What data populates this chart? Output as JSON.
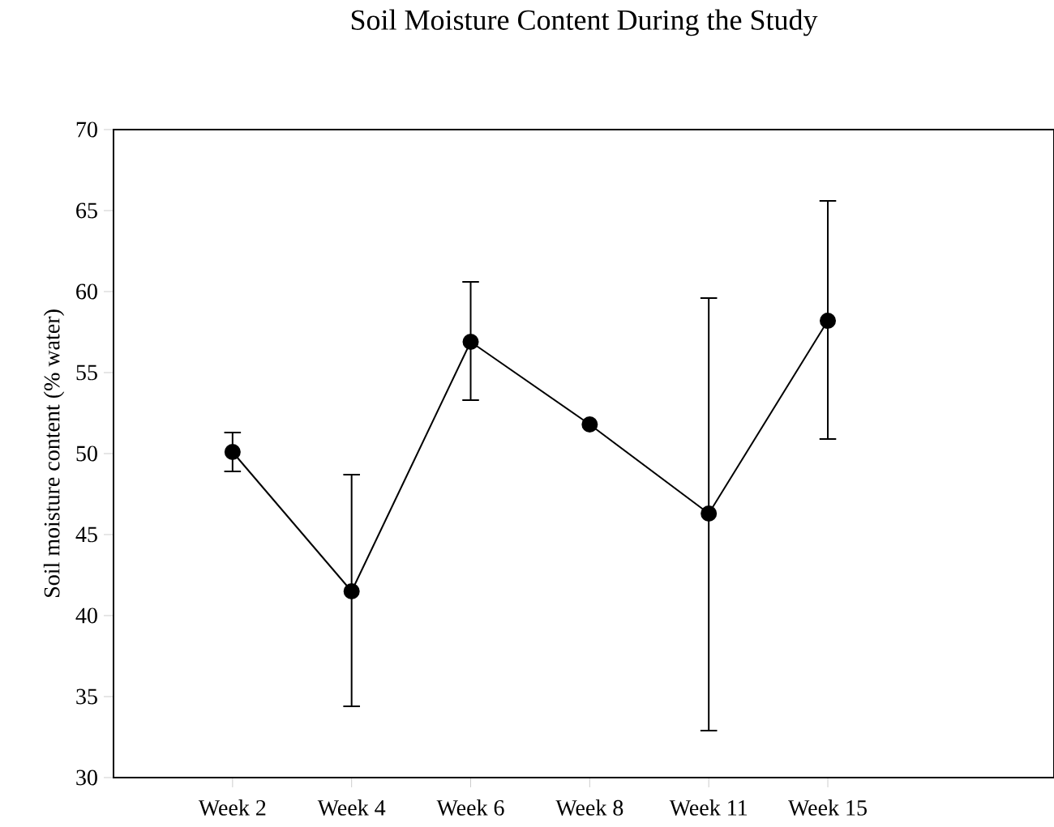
{
  "chart_data": {
    "type": "line",
    "title": "Soil Moisture Content During the Study",
    "ylabel": "Soil moisture content (% water)",
    "categories": [
      "Week 2",
      "Week 4",
      "Week 6",
      "Week 8",
      "Week 11",
      "Week 15"
    ],
    "values": [
      50.1,
      41.5,
      56.9,
      51.8,
      46.3,
      58.2
    ],
    "errors": [
      [
        48.9,
        51.3
      ],
      [
        34.4,
        48.7
      ],
      [
        53.3,
        60.6
      ],
      null,
      [
        32.9,
        59.6
      ],
      [
        50.9,
        65.6
      ]
    ],
    "color": "#000000",
    "marker": "circle",
    "line_style": "solid",
    "grid": false,
    "ylim": [
      30,
      70
    ],
    "yticks": [
      30,
      35,
      40,
      45,
      50,
      55,
      60,
      65,
      70
    ]
  }
}
